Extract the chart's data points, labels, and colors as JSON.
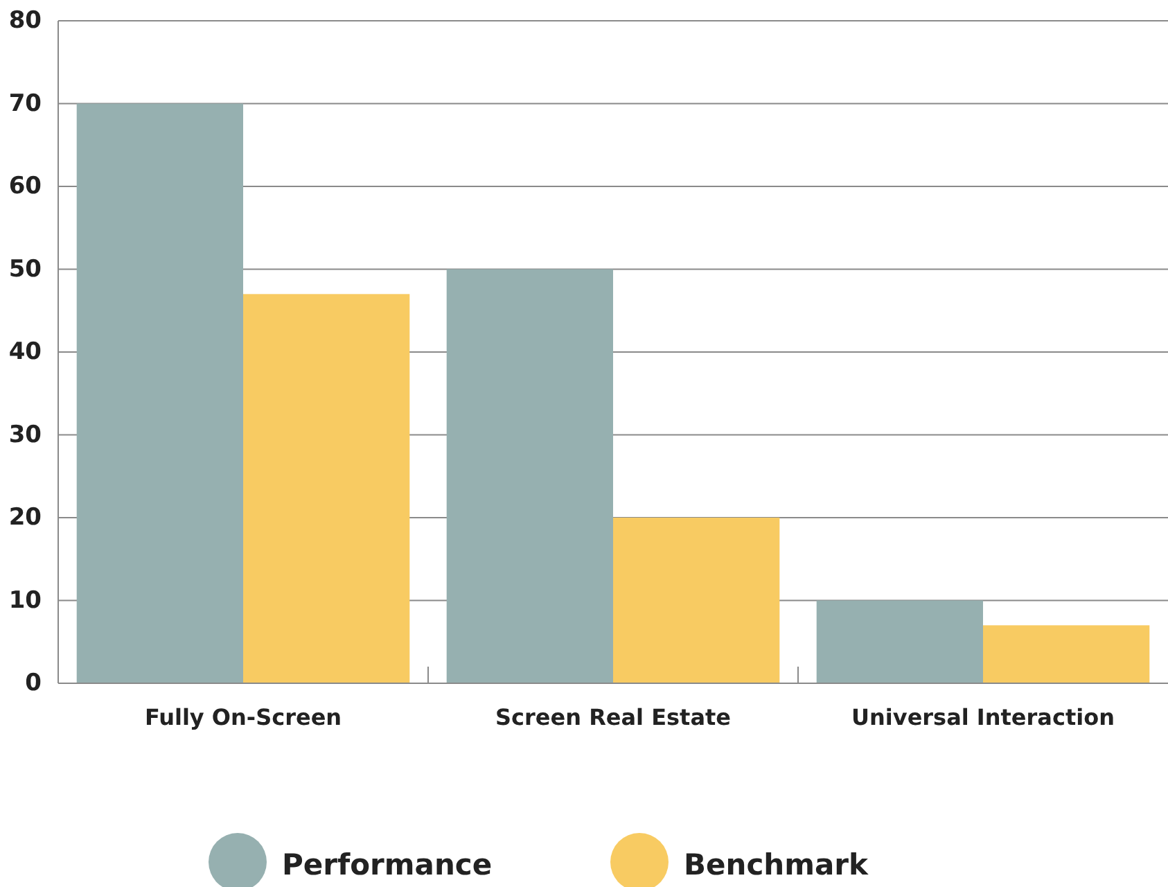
{
  "chart_data": {
    "type": "bar",
    "categories": [
      "Fully On-Screen",
      "Screen Real Estate",
      "Universal Interaction"
    ],
    "series": [
      {
        "name": "Performance",
        "color": "#96b0b0",
        "values": [
          70,
          50,
          10
        ]
      },
      {
        "name": "Benchmark",
        "color": "#f8cb62",
        "values": [
          47,
          20,
          7
        ]
      }
    ],
    "ylim": [
      0,
      80
    ],
    "yticks": [
      0,
      10,
      20,
      30,
      40,
      50,
      60,
      70,
      80
    ],
    "grid": "y",
    "legend": "bottom"
  }
}
